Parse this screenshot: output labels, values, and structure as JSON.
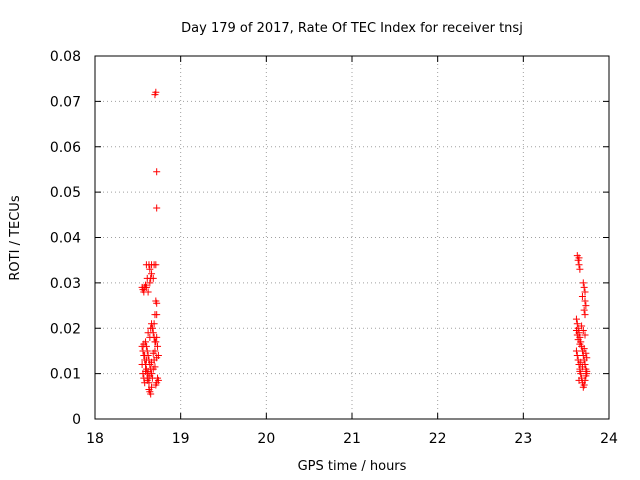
{
  "chart_data": {
    "type": "scatter",
    "title": "Day 179 of 2017, Rate Of TEC Index for receiver tnsj",
    "xlabel": "GPS time / hours",
    "ylabel": "ROTI / TECUs",
    "xlim": [
      18,
      24
    ],
    "ylim": [
      0,
      0.08
    ],
    "x_ticks": [
      "18",
      "19",
      "20",
      "21",
      "22",
      "23",
      "24"
    ],
    "y_ticks": [
      "0",
      "0.01",
      "0.02",
      "0.03",
      "0.04",
      "0.05",
      "0.06",
      "0.07",
      "0.08"
    ],
    "grid": true,
    "marker": "+",
    "color": "#ff0000",
    "points": [
      [
        18.55,
        0.029
      ],
      [
        18.57,
        0.028
      ],
      [
        18.58,
        0.029
      ],
      [
        18.6,
        0.029
      ],
      [
        18.62,
        0.028
      ],
      [
        18.64,
        0.03
      ],
      [
        18.56,
        0.0285
      ],
      [
        18.59,
        0.0295
      ],
      [
        18.6,
        0.034
      ],
      [
        18.63,
        0.034
      ],
      [
        18.66,
        0.034
      ],
      [
        18.69,
        0.034
      ],
      [
        18.71,
        0.034
      ],
      [
        18.64,
        0.033
      ],
      [
        18.61,
        0.031
      ],
      [
        18.65,
        0.031
      ],
      [
        18.68,
        0.031
      ],
      [
        18.66,
        0.032
      ],
      [
        18.71,
        0.026
      ],
      [
        18.72,
        0.0255
      ],
      [
        18.7,
        0.023
      ],
      [
        18.72,
        0.023
      ],
      [
        18.69,
        0.021
      ],
      [
        18.7,
        0.0715
      ],
      [
        18.71,
        0.072
      ],
      [
        18.72,
        0.0545
      ],
      [
        18.72,
        0.0465
      ],
      [
        18.55,
        0.016
      ],
      [
        18.56,
        0.015
      ],
      [
        18.57,
        0.014
      ],
      [
        18.58,
        0.013
      ],
      [
        18.59,
        0.012
      ],
      [
        18.6,
        0.011
      ],
      [
        18.61,
        0.01
      ],
      [
        18.62,
        0.009
      ],
      [
        18.63,
        0.008
      ],
      [
        18.64,
        0.006
      ],
      [
        18.65,
        0.0055
      ],
      [
        18.66,
        0.007
      ],
      [
        18.67,
        0.009
      ],
      [
        18.68,
        0.011
      ],
      [
        18.69,
        0.013
      ],
      [
        18.7,
        0.015
      ],
      [
        18.71,
        0.017
      ],
      [
        18.72,
        0.018
      ],
      [
        18.73,
        0.016
      ],
      [
        18.74,
        0.014
      ],
      [
        18.55,
        0.012
      ],
      [
        18.56,
        0.01
      ],
      [
        18.57,
        0.009
      ],
      [
        18.58,
        0.008
      ],
      [
        18.59,
        0.017
      ],
      [
        18.6,
        0.016
      ],
      [
        18.61,
        0.015
      ],
      [
        18.62,
        0.014
      ],
      [
        18.63,
        0.013
      ],
      [
        18.64,
        0.012
      ],
      [
        18.65,
        0.011
      ],
      [
        18.66,
        0.01
      ],
      [
        18.67,
        0.02
      ],
      [
        18.68,
        0.019
      ],
      [
        18.69,
        0.018
      ],
      [
        18.7,
        0.017
      ],
      [
        18.71,
        0.0075
      ],
      [
        18.72,
        0.008
      ],
      [
        18.73,
        0.009
      ],
      [
        18.74,
        0.0085
      ],
      [
        18.58,
        0.014
      ],
      [
        18.6,
        0.013
      ],
      [
        18.62,
        0.0105
      ],
      [
        18.64,
        0.0095
      ],
      [
        18.66,
        0.0125
      ],
      [
        18.68,
        0.0145
      ],
      [
        18.7,
        0.0115
      ],
      [
        18.72,
        0.0135
      ],
      [
        18.65,
        0.02
      ],
      [
        18.66,
        0.021
      ],
      [
        18.64,
        0.018
      ],
      [
        18.62,
        0.019
      ],
      [
        18.61,
        0.0085
      ],
      [
        18.63,
        0.0065
      ],
      [
        18.57,
        0.0165
      ],
      [
        18.59,
        0.0105
      ],
      [
        23.63,
        0.036
      ],
      [
        23.64,
        0.035
      ],
      [
        23.65,
        0.034
      ],
      [
        23.66,
        0.033
      ],
      [
        23.65,
        0.0355
      ],
      [
        23.7,
        0.03
      ],
      [
        23.71,
        0.029
      ],
      [
        23.72,
        0.028
      ],
      [
        23.69,
        0.027
      ],
      [
        23.72,
        0.026
      ],
      [
        23.73,
        0.025
      ],
      [
        23.71,
        0.024
      ],
      [
        23.72,
        0.023
      ],
      [
        23.62,
        0.022
      ],
      [
        23.63,
        0.021
      ],
      [
        23.64,
        0.02
      ],
      [
        23.65,
        0.019
      ],
      [
        23.66,
        0.018
      ],
      [
        23.67,
        0.017
      ],
      [
        23.68,
        0.016
      ],
      [
        23.69,
        0.015
      ],
      [
        23.7,
        0.014
      ],
      [
        23.71,
        0.013
      ],
      [
        23.72,
        0.012
      ],
      [
        23.73,
        0.011
      ],
      [
        23.74,
        0.01
      ],
      [
        23.62,
        0.015
      ],
      [
        23.63,
        0.014
      ],
      [
        23.64,
        0.013
      ],
      [
        23.65,
        0.012
      ],
      [
        23.66,
        0.011
      ],
      [
        23.67,
        0.01
      ],
      [
        23.68,
        0.009
      ],
      [
        23.69,
        0.008
      ],
      [
        23.7,
        0.007
      ],
      [
        23.71,
        0.0075
      ],
      [
        23.72,
        0.0085
      ],
      [
        23.73,
        0.0095
      ],
      [
        23.74,
        0.0105
      ],
      [
        23.62,
        0.0195
      ],
      [
        23.63,
        0.0185
      ],
      [
        23.64,
        0.0175
      ],
      [
        23.66,
        0.0165
      ],
      [
        23.68,
        0.0205
      ],
      [
        23.7,
        0.0195
      ],
      [
        23.72,
        0.0185
      ],
      [
        23.74,
        0.0135
      ],
      [
        23.65,
        0.0085
      ],
      [
        23.67,
        0.0125
      ],
      [
        23.69,
        0.0115
      ],
      [
        23.71,
        0.0155
      ],
      [
        23.73,
        0.0145
      ],
      [
        23.66,
        0.0105
      ]
    ]
  }
}
